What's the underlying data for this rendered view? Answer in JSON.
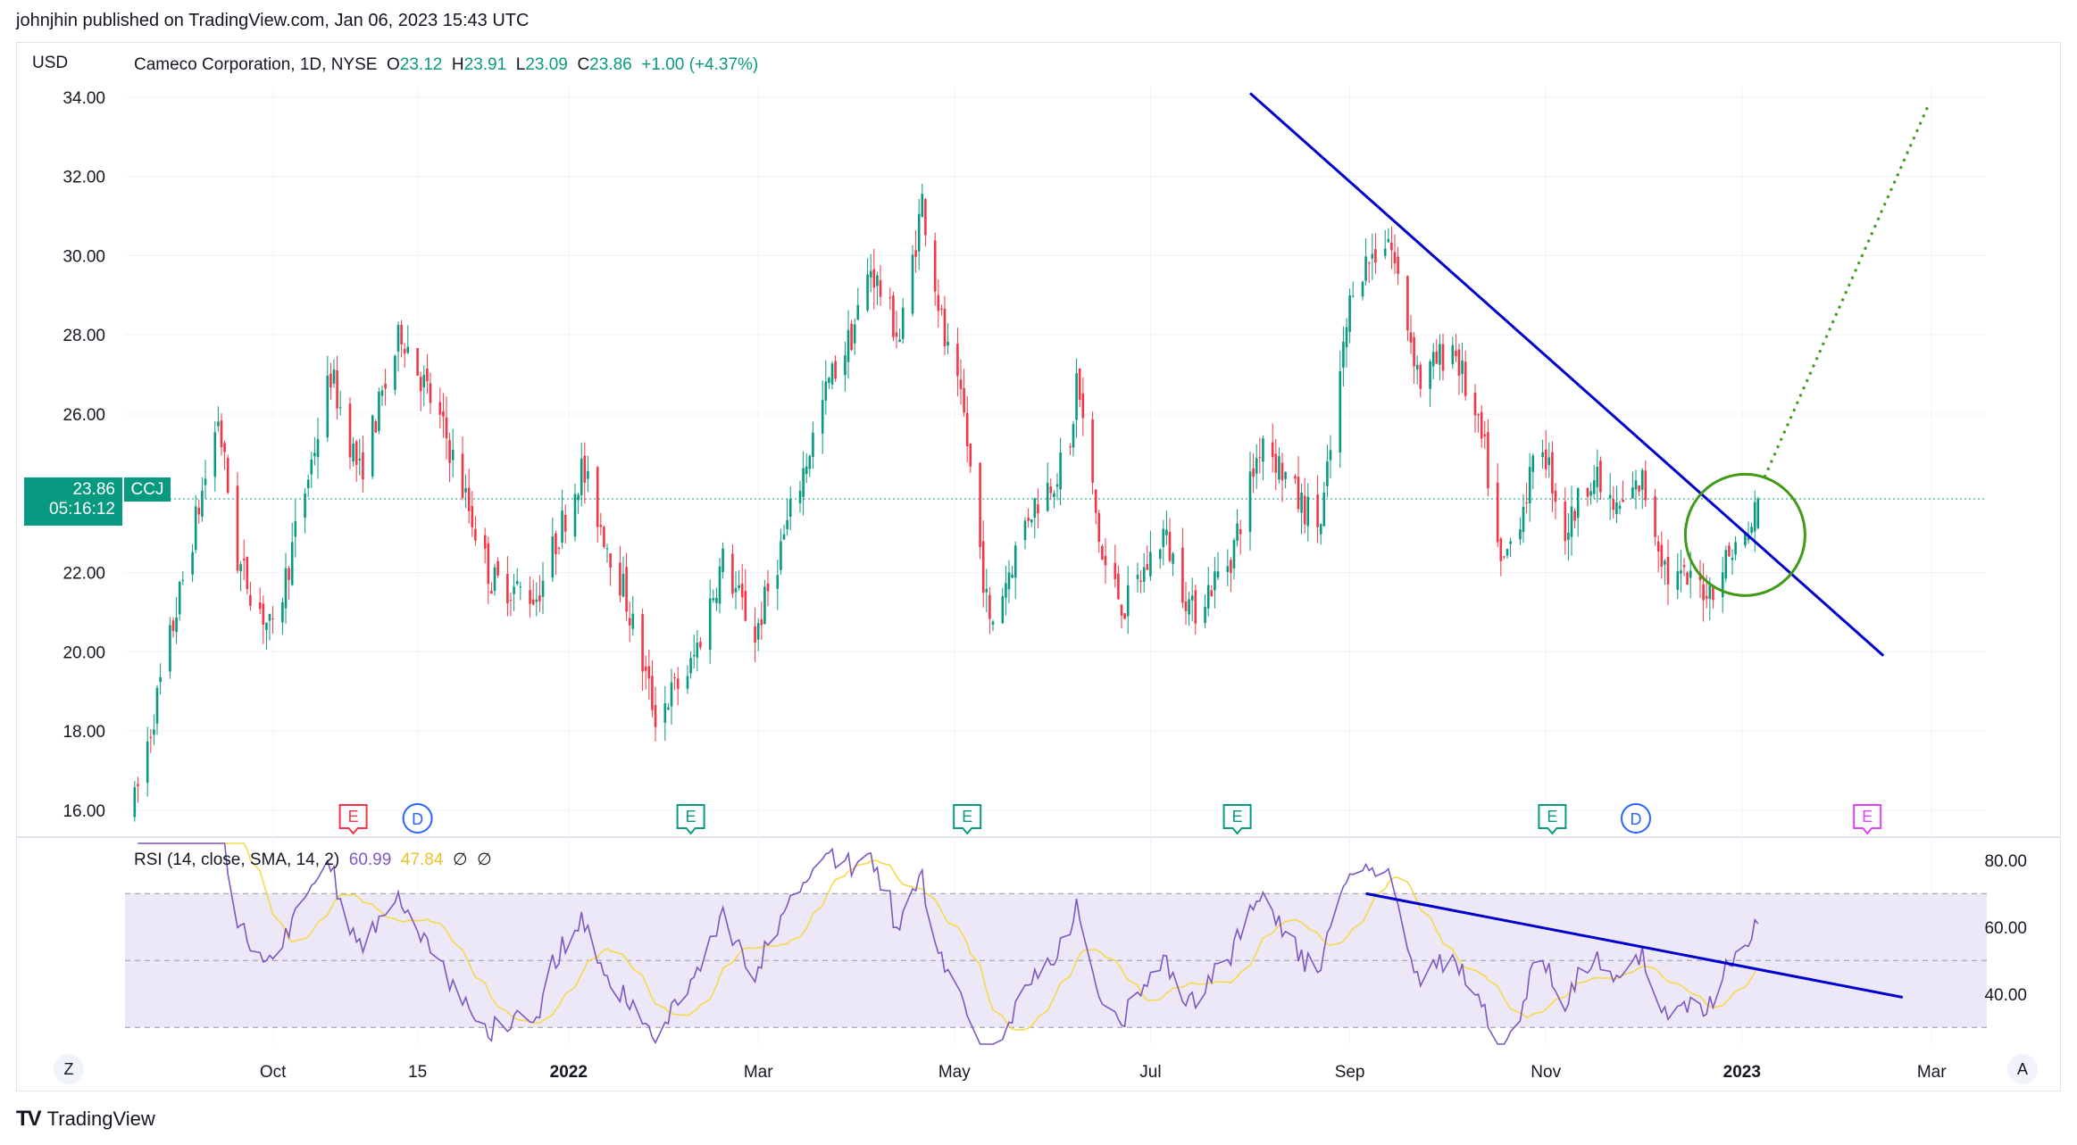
{
  "header": {
    "published_line": "johnjhin published on TradingView.com, Jan 06, 2023 15:43 UTC"
  },
  "legend": {
    "symbol_line": "Cameco Corporation, 1D, NYSE",
    "o_label": "O",
    "o_value": "23.12",
    "h_label": "H",
    "h_value": "23.91",
    "l_label": "L",
    "l_value": "23.09",
    "c_label": "C",
    "c_value": "23.86",
    "change": "+1.00 (+4.37%)"
  },
  "currency": "USD",
  "price_label": {
    "price": "23.86",
    "countdown": "05:16:12",
    "symbol": "CCJ"
  },
  "rsi_legend": {
    "title": "RSI (14, close, SMA, 14, 2)",
    "rsi_value": "60.99",
    "sma_value": "47.84",
    "extra1": "∅",
    "extra2": "∅"
  },
  "corner_buttons": {
    "left": "Z",
    "right": "A"
  },
  "brand": {
    "logo": "TV",
    "name": "TradingView"
  },
  "colors": {
    "up": "#089981",
    "down": "#f23645",
    "trendline": "#0000cc",
    "target": "#3f9a16",
    "rsi": "#7e57c2",
    "rsi_sma": "#f5d94a",
    "rsi_band": "#ede8f7"
  },
  "chart_data": {
    "type": "candlestick",
    "symbol": "CCJ",
    "price_axis": {
      "ticks": [
        "34.00",
        "32.00",
        "30.00",
        "28.00",
        "26.00",
        "22.00",
        "20.00",
        "18.00",
        "16.00"
      ],
      "ylim": [
        15.5,
        34.2
      ]
    },
    "time_axis": {
      "labels": [
        "Oct",
        "15",
        "2022",
        "Mar",
        "May",
        "Jul",
        "Sep",
        "Nov",
        "2023",
        "Mar"
      ]
    },
    "turning_points": [
      {
        "t": "2021-08-19",
        "p": 16.2
      },
      {
        "t": "2021-09-14",
        "p": 25.9
      },
      {
        "t": "2021-09-20",
        "p": 22.3
      },
      {
        "t": "2021-10-01",
        "p": 20.4
      },
      {
        "t": "2021-10-19",
        "p": 27.0
      },
      {
        "t": "2021-10-28",
        "p": 24.5
      },
      {
        "t": "2021-11-10",
        "p": 28.1
      },
      {
        "t": "2021-11-24",
        "p": 25.4
      },
      {
        "t": "2021-12-08",
        "p": 21.8
      },
      {
        "t": "2021-12-22",
        "p": 21.4
      },
      {
        "t": "2022-01-05",
        "p": 24.6
      },
      {
        "t": "2022-01-18",
        "p": 21.6
      },
      {
        "t": "2022-01-28",
        "p": 18.4
      },
      {
        "t": "2022-02-08",
        "p": 19.6
      },
      {
        "t": "2022-02-18",
        "p": 22.3
      },
      {
        "t": "2022-02-28",
        "p": 20.4
      },
      {
        "t": "2022-03-23",
        "p": 26.8
      },
      {
        "t": "2022-03-30",
        "p": 28.0
      },
      {
        "t": "2022-04-05",
        "p": 29.7
      },
      {
        "t": "2022-04-14",
        "p": 27.9
      },
      {
        "t": "2022-04-21",
        "p": 31.4
      },
      {
        "t": "2022-04-28",
        "p": 27.8
      },
      {
        "t": "2022-05-04",
        "p": 25.9
      },
      {
        "t": "2022-05-12",
        "p": 20.6
      },
      {
        "t": "2022-05-24",
        "p": 23.5
      },
      {
        "t": "2022-06-06",
        "p": 25.0
      },
      {
        "t": "2022-06-08",
        "p": 26.9
      },
      {
        "t": "2022-06-16",
        "p": 22.3
      },
      {
        "t": "2022-06-23",
        "p": 21.1
      },
      {
        "t": "2022-07-05",
        "p": 23.0
      },
      {
        "t": "2022-07-14",
        "p": 21.0
      },
      {
        "t": "2022-07-26",
        "p": 22.4
      },
      {
        "t": "2022-08-05",
        "p": 25.5
      },
      {
        "t": "2022-08-16",
        "p": 23.8
      },
      {
        "t": "2022-08-23",
        "p": 23.2
      },
      {
        "t": "2022-09-02",
        "p": 29.4
      },
      {
        "t": "2022-09-13",
        "p": 30.5
      },
      {
        "t": "2022-09-23",
        "p": 26.8
      },
      {
        "t": "2022-10-03",
        "p": 27.8
      },
      {
        "t": "2022-10-13",
        "p": 25.0
      },
      {
        "t": "2022-10-18",
        "p": 22.0
      },
      {
        "t": "2022-10-31",
        "p": 25.3
      },
      {
        "t": "2022-11-07",
        "p": 23.0
      },
      {
        "t": "2022-11-15",
        "p": 24.5
      },
      {
        "t": "2022-11-23",
        "p": 23.5
      },
      {
        "t": "2022-12-01",
        "p": 24.3
      },
      {
        "t": "2022-12-09",
        "p": 21.9
      },
      {
        "t": "2022-12-22",
        "p": 21.6
      },
      {
        "t": "2022-12-29",
        "p": 22.6
      },
      {
        "t": "2023-01-03",
        "p": 22.9
      },
      {
        "t": "2023-01-06",
        "p": 23.86
      }
    ],
    "trendlines": [
      {
        "name": "price-resistance",
        "from": {
          "t": "2022-08-01",
          "p": 34.1
        },
        "to": {
          "t": "2023-02-14",
          "p": 19.9
        }
      },
      {
        "name": "price-target",
        "from": {
          "t": "2023-01-08",
          "p": 24.4
        },
        "to": {
          "t": "2023-02-28",
          "p": 33.8
        },
        "style": "dotted"
      },
      {
        "name": "rsi-resistance",
        "from": {
          "t": "2022-09-06",
          "rsi": 70
        },
        "to": {
          "t": "2023-02-20",
          "rsi": 39
        }
      }
    ],
    "event_markers": [
      {
        "t": "2021-10-26",
        "label": "E"
      },
      {
        "t": "2021-11-15",
        "label": "D"
      },
      {
        "t": "2022-02-08",
        "label": "E"
      },
      {
        "t": "2022-05-05",
        "label": "E"
      },
      {
        "t": "2022-07-28",
        "label": "E"
      },
      {
        "t": "2022-11-03",
        "label": "E"
      },
      {
        "t": "2022-11-29",
        "label": "D"
      },
      {
        "t": "2023-02-09",
        "label": "E"
      }
    ],
    "rsi": {
      "axis_ticks": [
        "80.00",
        "60.00",
        "40.00"
      ],
      "ylim": [
        25,
        85
      ],
      "bands": [
        30,
        50,
        70
      ],
      "value": 60.99,
      "sma": 47.84
    }
  }
}
